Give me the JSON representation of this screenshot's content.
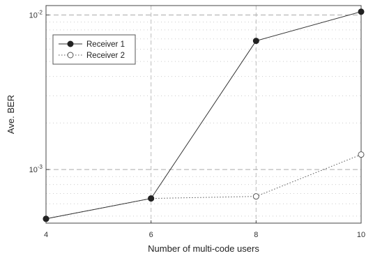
{
  "chart_data": {
    "type": "line",
    "title": "",
    "xlabel": "Number of multi-code users",
    "ylabel": "Ave. BER",
    "yscale": "log",
    "x": [
      4,
      6,
      8,
      10
    ],
    "xlim": [
      4,
      10
    ],
    "xticks": [
      "4",
      "6",
      "8",
      "10"
    ],
    "ylim": [
      0.00045,
      0.0115
    ],
    "yticks": [
      {
        "value": 0.01,
        "base": "10",
        "exp": "-2"
      },
      {
        "value": 0.001,
        "base": "10",
        "exp": "-3"
      }
    ],
    "grid": true,
    "legend_position": "top-left",
    "series": [
      {
        "name": "Receiver 1",
        "values": [
          0.00048,
          0.00065,
          0.0068,
          0.0105
        ],
        "marker": "filled-circle",
        "line": "solid",
        "color": "#333333"
      },
      {
        "name": "Receiver 2",
        "values": [
          0.00048,
          0.00065,
          0.00067,
          0.00125
        ],
        "marker": "open-circle",
        "line": "dotted",
        "color": "#555555"
      }
    ]
  }
}
